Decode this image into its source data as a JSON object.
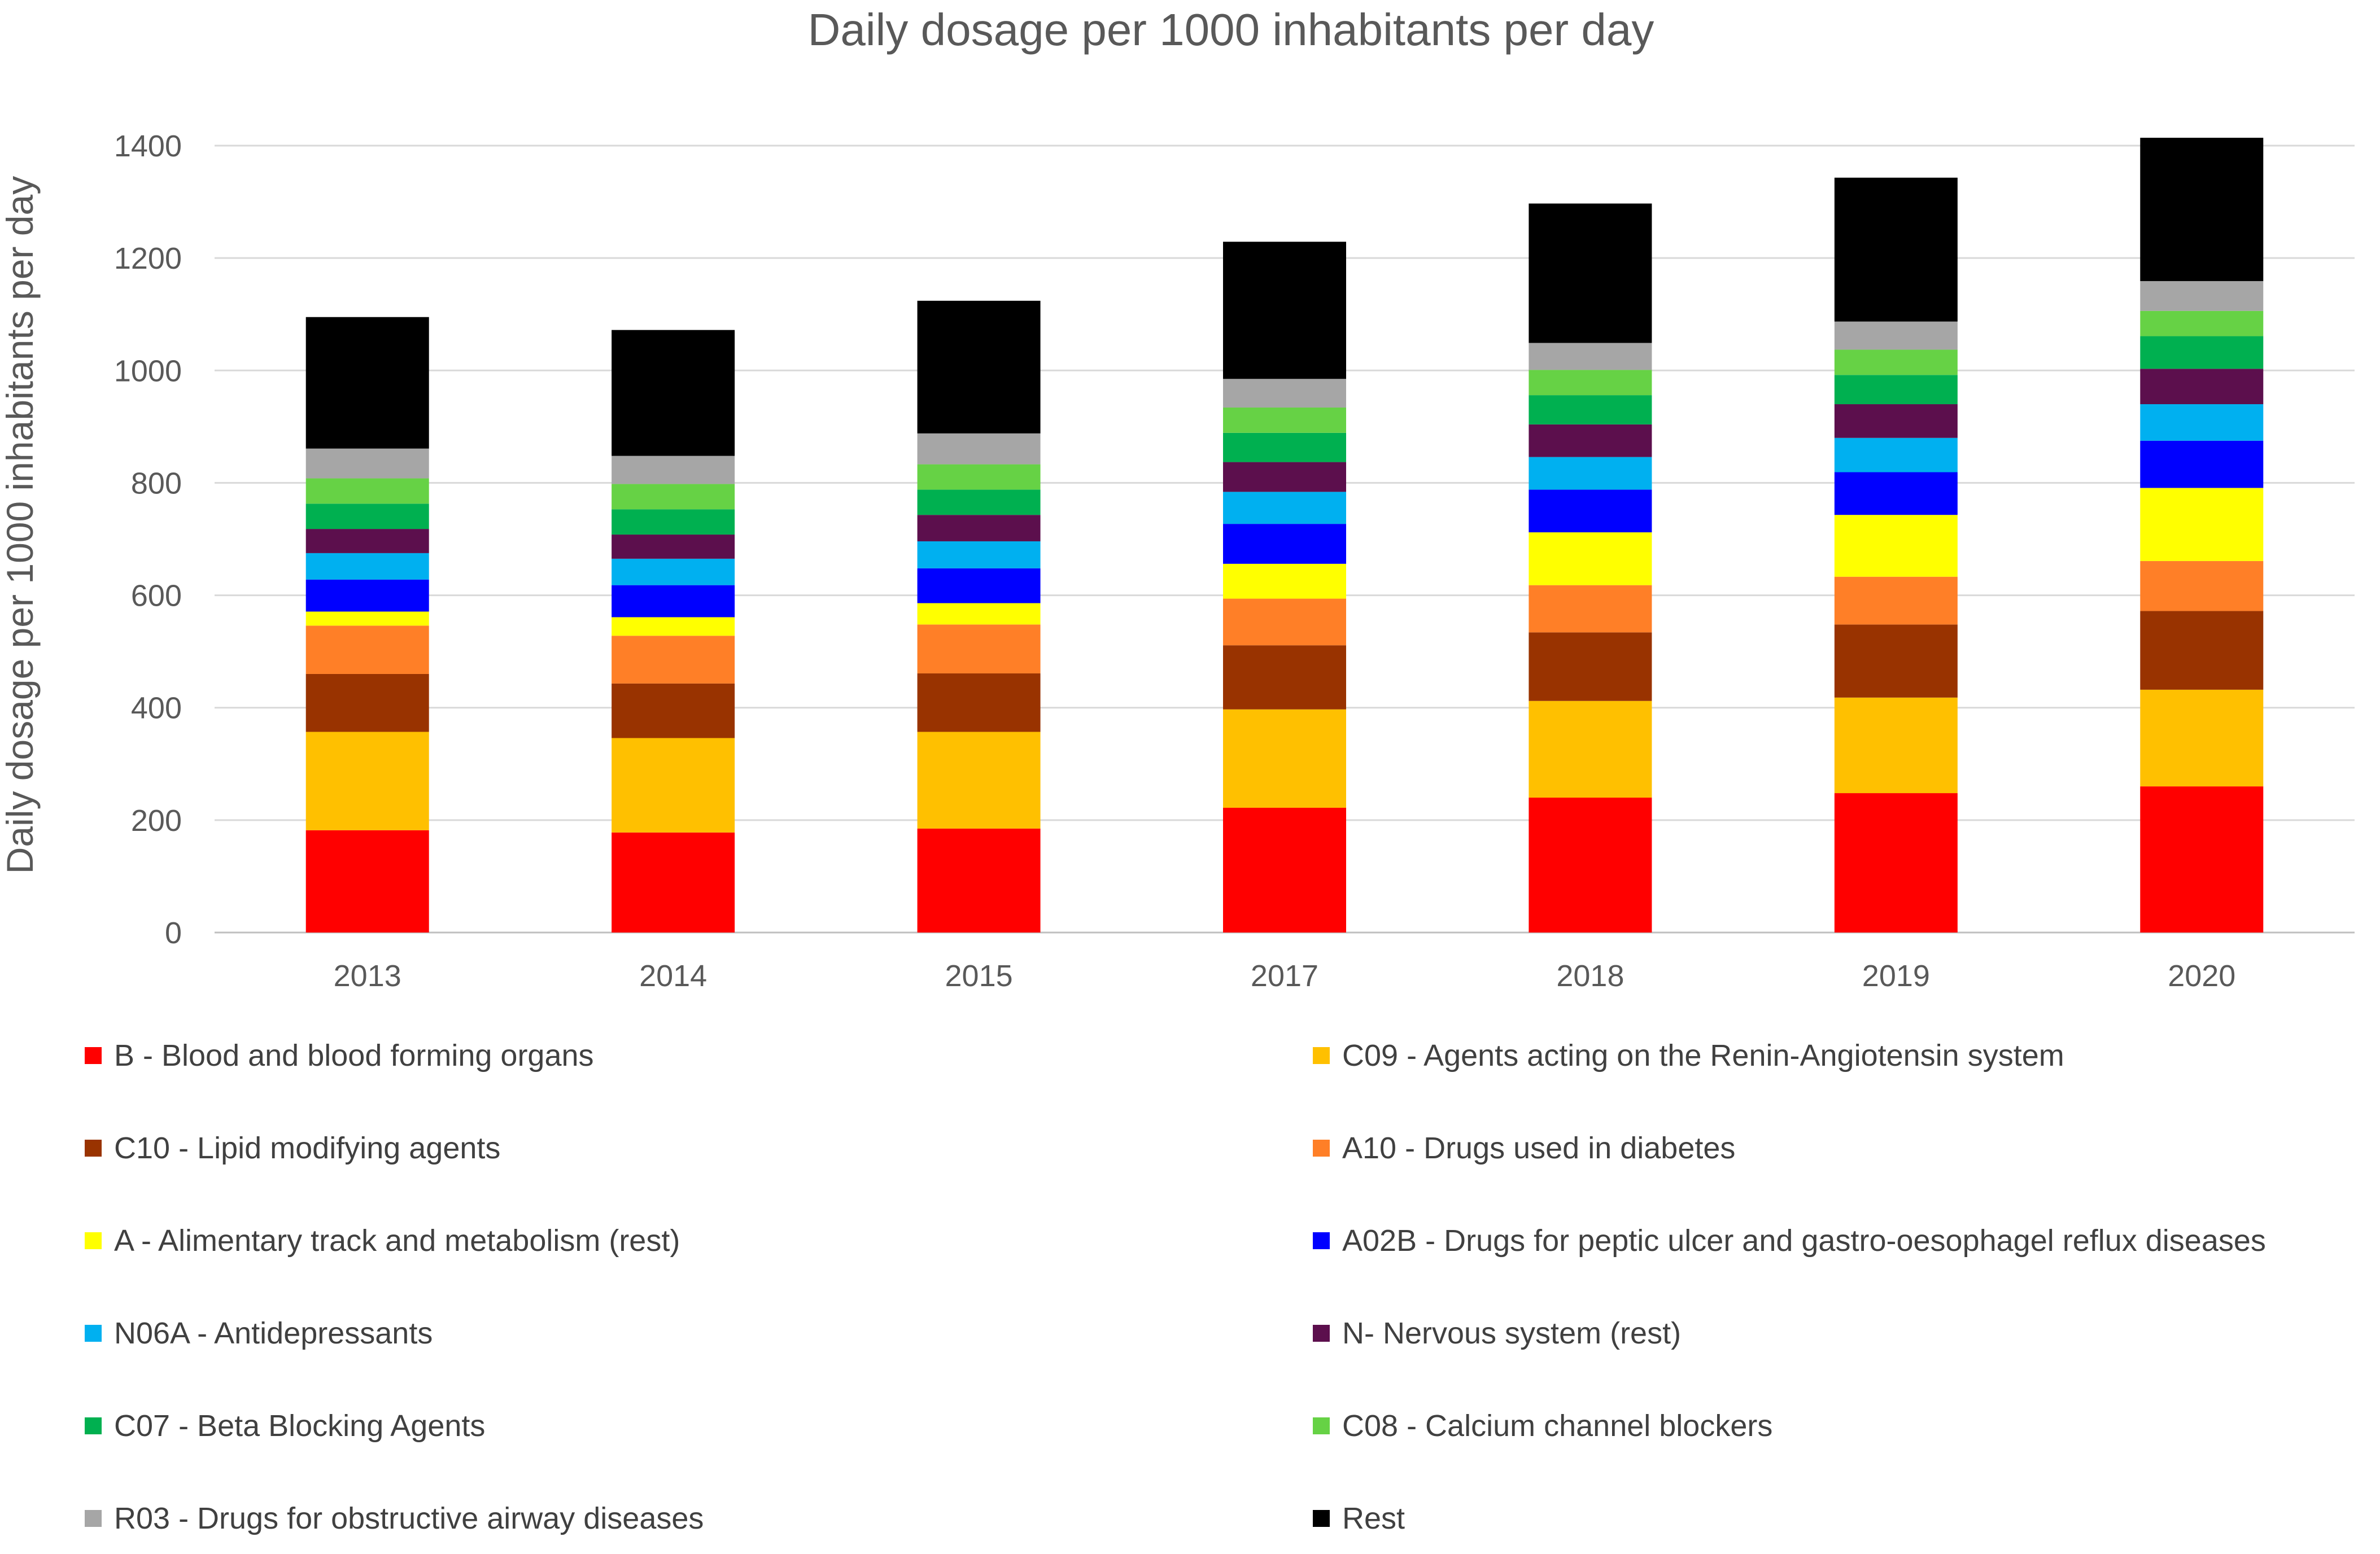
{
  "chart_data": {
    "type": "bar",
    "stacked": true,
    "title": "Daily dosage per 1000 inhabitants per day",
    "ylabel": "Daily dosage per 1000 inhabitants per day",
    "xlabel": "",
    "categories": [
      "2013",
      "2014",
      "2015",
      "2017",
      "2018",
      "2019",
      "2020"
    ],
    "ylim": [
      0,
      1400
    ],
    "yticks": [
      "0",
      "200",
      "400",
      "600",
      "800",
      "1000",
      "1200",
      "1400"
    ],
    "grid": true,
    "legend_position": "bottom",
    "series": [
      {
        "name": "B - Blood and blood forming organs",
        "color": "#FF0000",
        "values": [
          182,
          178,
          185,
          222,
          240,
          248,
          260
        ]
      },
      {
        "name": "C09 - Agents acting on the Renin-Angiotensin system",
        "color": "#FFC000",
        "values": [
          175,
          168,
          172,
          175,
          172,
          170,
          172
        ]
      },
      {
        "name": "C10 - Lipid modifying agents",
        "color": "#993300",
        "values": [
          103,
          97,
          104,
          114,
          122,
          130,
          140
        ]
      },
      {
        "name": "A10 - Drugs used in diabetes",
        "color": "#FF7F27",
        "values": [
          86,
          85,
          87,
          83,
          84,
          85,
          89
        ]
      },
      {
        "name": "A - Alimentary track and metabolism (rest)",
        "color": "#FFFF00",
        "values": [
          25,
          33,
          38,
          62,
          94,
          110,
          130
        ]
      },
      {
        "name": "A02B - Drugs for peptic ulcer and gastro-oesophagel reflux diseases",
        "color": "#0000FF",
        "values": [
          57,
          57,
          62,
          71,
          76,
          76,
          84
        ]
      },
      {
        "name": "N06A - Antidepressants",
        "color": "#00B0F0",
        "values": [
          47,
          47,
          48,
          57,
          58,
          61,
          65
        ]
      },
      {
        "name": "N- Nervous system (rest)",
        "color": "#5C0F4D",
        "values": [
          43,
          43,
          47,
          53,
          58,
          60,
          63
        ]
      },
      {
        "name": "C07 - Beta Blocking Agents",
        "color": "#00B050",
        "values": [
          45,
          45,
          45,
          52,
          52,
          52,
          58
        ]
      },
      {
        "name": "C08 - Calcium channel blockers",
        "color": "#66D245",
        "values": [
          45,
          45,
          45,
          45,
          45,
          45,
          45
        ]
      },
      {
        "name": "R03 - Drugs for obstructive airway diseases",
        "color": "#A6A6A6",
        "values": [
          53,
          50,
          55,
          51,
          48,
          50,
          53
        ]
      },
      {
        "name": "Rest",
        "color": "#000000",
        "values": [
          234,
          224,
          236,
          244,
          248,
          256,
          255
        ]
      }
    ]
  },
  "colors": {
    "axis_text": "#595959",
    "grid": "#D9D9D9"
  }
}
